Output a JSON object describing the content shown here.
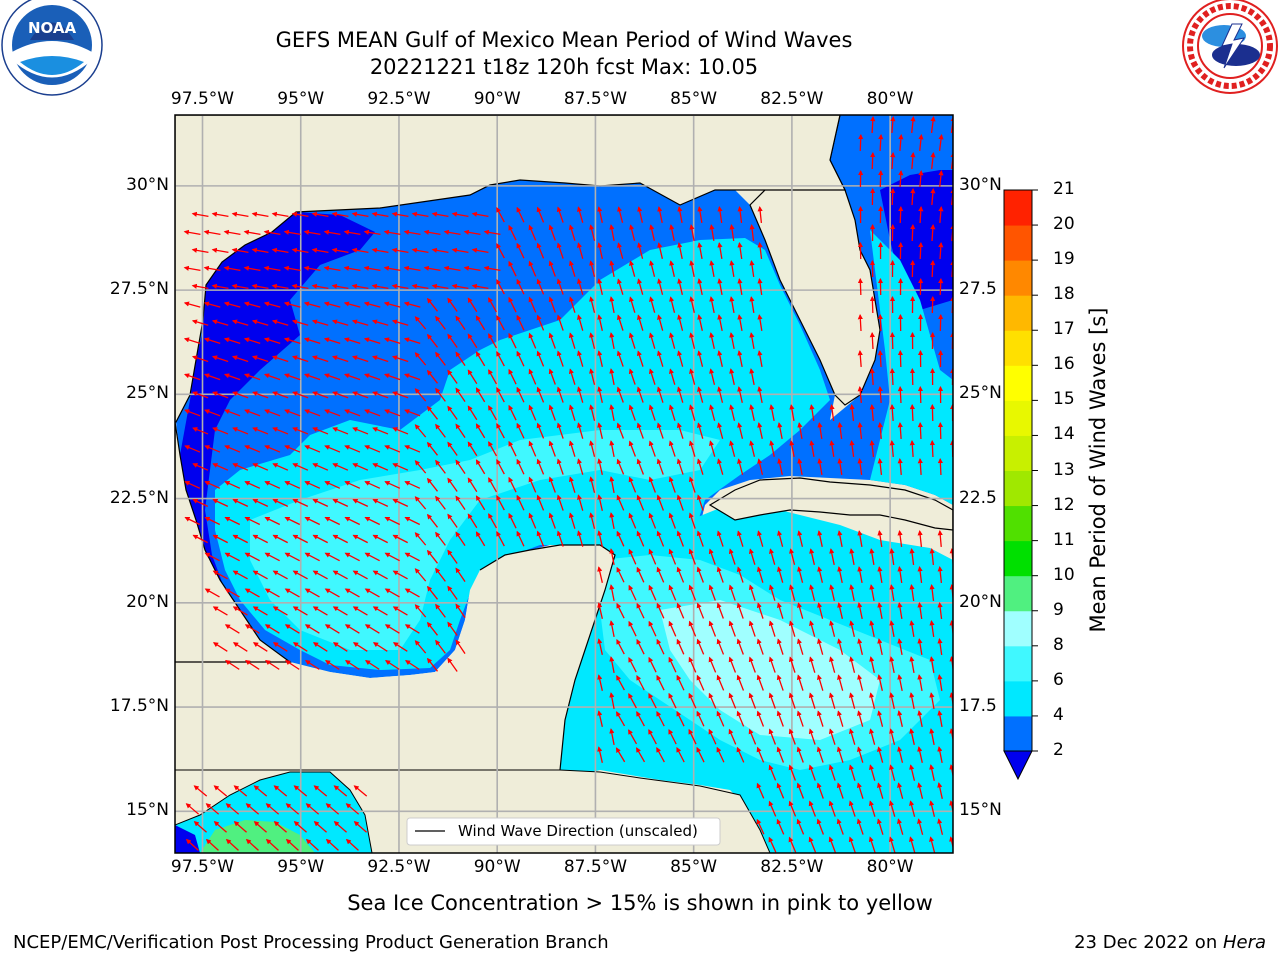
{
  "title": {
    "line1": "GEFS MEAN Gulf of Mexico Mean Period of Wind Waves",
    "line2": "20221221 t18z 120h fcst   Max: 10.05"
  },
  "logos": {
    "left": {
      "text_top": "NATIONAL OCEANIC AND ATMOSPHERIC ADMINISTRATION",
      "text_bottom": "U.S. DEPARTMENT OF COMMERCE",
      "center": "NOAA",
      "color": "#1b3f8f"
    },
    "right": {
      "ring": "NATIONAL WEATHER SERVICE",
      "color": "#e02020"
    }
  },
  "axes": {
    "lon_labels": [
      "97.5°W",
      "95°W",
      "92.5°W",
      "90°W",
      "87.5°W",
      "85°W",
      "82.5°W",
      "80°W"
    ],
    "lon_values": [
      -97.5,
      -95,
      -92.5,
      -90,
      -87.5,
      -85,
      -82.5,
      -80
    ],
    "lat_labels_left": [
      "30°N",
      "27.5°N",
      "25°N",
      "22.5°N",
      "20°N",
      "17.5°N",
      "15°N"
    ],
    "lat_labels_right": [
      "30°N",
      "27.5",
      "25°N",
      "22.5",
      "20°N",
      "17.5",
      "15°N"
    ],
    "lat_values": [
      30,
      27.5,
      25,
      22.5,
      20,
      17.5,
      15
    ],
    "lon_range": [
      -98.2,
      -78.4
    ],
    "lat_range": [
      14.0,
      31.7
    ],
    "grid": true
  },
  "legend": {
    "label": "Wind Wave Direction (unscaled)",
    "placement": "bottom-right"
  },
  "colorbar": {
    "label": "Mean Period of Wind Waves [s]",
    "ticks": [
      "2",
      "4",
      "6",
      "8",
      "9",
      "10",
      "11",
      "12",
      "13",
      "14",
      "15",
      "16",
      "17",
      "18",
      "19",
      "20",
      "21"
    ],
    "colors": [
      "#0070ff",
      "#00e8ff",
      "#40f8ff",
      "#a0ffff",
      "#50f080",
      "#00e000",
      "#50e000",
      "#a0e800",
      "#c8f000",
      "#e8f800",
      "#ffff00",
      "#ffe000",
      "#ffb800",
      "#ff8800",
      "#ff5500",
      "#ff2200"
    ],
    "under_color": "#0000ee"
  },
  "colors": {
    "land": "#efedd9",
    "water_le2": "#0000ee",
    "water_2_4": "#0070ff",
    "water_4_6": "#00e8ff",
    "water_6_8": "#40f8ff",
    "water_8_9": "#a0ffff",
    "water_9_10": "#50f080",
    "arrow": "#ff0000"
  },
  "chart_data": {
    "type": "map",
    "variable": "Mean Period of Wind Waves [s]",
    "max": 10.05,
    "valid": "20221221 t18z 120h fcst",
    "levels": [
      2,
      4,
      6,
      8,
      9,
      10,
      11,
      12,
      13,
      14,
      15,
      16,
      17,
      18,
      19,
      20,
      21
    ]
  },
  "notes": {
    "sea_ice": "Sea Ice Concentration > 15% is shown in pink to yellow"
  },
  "footer": {
    "left": "NCEP/EMC/Verification Post Processing Product Generation Branch",
    "right_date": "23 Dec 2022 on ",
    "right_host": "Hera"
  }
}
